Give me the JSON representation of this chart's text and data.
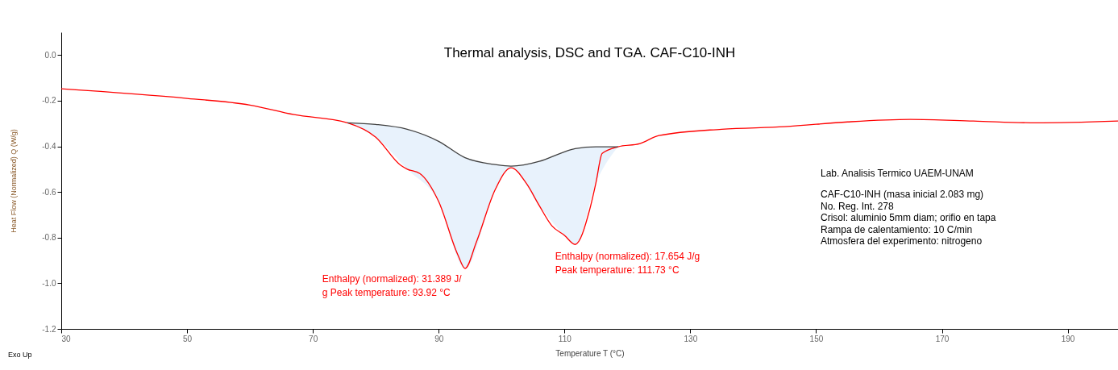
{
  "chart_data": {
    "type": "line",
    "title": "Thermal analysis, DSC and TGA. CAF-C10-INH",
    "xlabel": "Temperature T (°C)",
    "ylabel": "Heat Flow (Normalized) Q (W/g)",
    "xlim": [
      30,
      198
    ],
    "ylim": [
      -1.2,
      0.1
    ],
    "xticks": [
      30,
      50,
      70,
      90,
      110,
      130,
      150,
      170,
      190
    ],
    "yticks": [
      {
        "value": -1.2,
        "label": "-1.2"
      },
      {
        "value": -1.0,
        "label": "-1.0"
      },
      -0.8,
      -0.6,
      -0.4,
      -0.2,
      {
        "value": 0,
        "label": "0.0"
      }
    ],
    "grid": false,
    "marker": "none",
    "line_style": "solid",
    "series": [
      {
        "color": "#ff0000",
        "x": [
          30,
          50,
          60,
          67,
          75.5,
          80,
          84,
          85,
          87,
          90,
          93,
          94.2,
          96,
          99,
          101.5,
          104,
          106,
          108,
          110,
          111.7,
          114,
          115,
          116,
          118.5,
          122,
          125,
          135,
          145,
          155,
          165,
          175,
          185,
          198
        ],
        "values": [
          -0.148,
          -0.19,
          -0.219,
          -0.261,
          -0.297,
          -0.36,
          -0.484,
          -0.5,
          -0.519,
          -0.642,
          -0.872,
          -0.935,
          -0.819,
          -0.589,
          -0.494,
          -0.565,
          -0.66,
          -0.748,
          -0.79,
          -0.83,
          -0.678,
          -0.56,
          -0.431,
          -0.402,
          -0.388,
          -0.353,
          -0.325,
          -0.314,
          -0.293,
          -0.282,
          -0.289,
          -0.297,
          -0.289
        ]
      },
      {
        "color": "#404040",
        "x": [
          75.5,
          80,
          85,
          90,
          94.2,
          99,
          101.5,
          106,
          110,
          111.7,
          115,
          118.5
        ],
        "values": [
          -0.297,
          -0.304,
          -0.325,
          -0.378,
          -0.45,
          -0.48,
          -0.487,
          -0.466,
          -0.424,
          -0.41,
          -0.402,
          -0.402
        ],
        "lower": [
          -0.297,
          -0.36,
          -0.5,
          -0.642,
          -0.935,
          -0.589,
          -0.494,
          -0.66,
          -0.79,
          -0.83,
          -0.56,
          -0.402
        ],
        "upper": [
          -0.297,
          -0.304,
          -0.325,
          -0.378,
          -0.45,
          -0.48,
          -0.487,
          -0.466,
          -0.424,
          -0.41,
          -0.402,
          -0.402
        ]
      }
    ],
    "annotations": [
      {
        "text": "Enthalpy (normalized): 31.389 J/\ng Peak temperature: 93.92 °C",
        "x": 93.92,
        "y": -0.935
      },
      {
        "text": "Enthalpy (normalized): 17.654 J/g\nPeak temperature: 111.73 °C",
        "x": 111.73,
        "y": -0.83
      },
      "Lab. Analisis Termico UAEM-UNAM",
      "CAF-C10-INH (masa inicial 2.083 mg)",
      "No. Reg. Int. 278",
      "Crisol: aluminio 5mm diam; orifio en tapa",
      "Rampa de calentamiento: 10 C/min",
      "Atmosfera del experimento: nitrogeno",
      "Exo Up"
    ]
  }
}
